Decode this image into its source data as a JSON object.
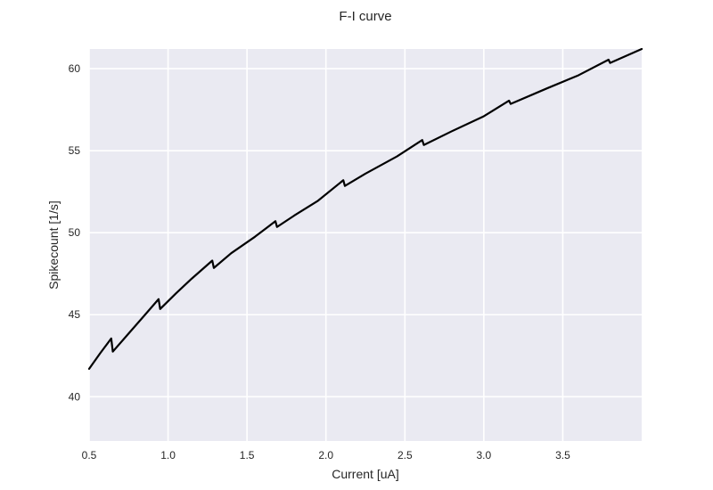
{
  "chart_data": {
    "type": "line",
    "title": "F-I curve",
    "xlabel": "Current [uA]",
    "ylabel": "Spikecount [1/s]",
    "xlim": [
      0.5,
      4.0
    ],
    "ylim": [
      37.3,
      61.2
    ],
    "xticks": [
      "0.5",
      "1.0",
      "1.5",
      "2.0",
      "2.5",
      "3.0",
      "3.5"
    ],
    "yticks": [
      "40",
      "45",
      "50",
      "55",
      "60"
    ],
    "grid": true,
    "colors": {
      "plot_background": "#EAEAF2",
      "grid": "#FFFFFF",
      "line": "#000000"
    },
    "series": [
      {
        "x": [
          0.5,
          0.57,
          0.64,
          0.65,
          0.75,
          0.85,
          0.94,
          0.95,
          1.05,
          1.15,
          1.28,
          1.29,
          1.4,
          1.55,
          1.68,
          1.69,
          1.8,
          1.95,
          2.11,
          2.12,
          2.25,
          2.45,
          2.61,
          2.62,
          2.8,
          3.0,
          3.16,
          3.17,
          3.4,
          3.6,
          3.79,
          3.8,
          4.0
        ],
        "y": [
          41.7,
          42.65,
          43.55,
          42.75,
          43.85,
          44.95,
          45.95,
          45.35,
          46.3,
          47.2,
          48.3,
          47.85,
          48.75,
          49.75,
          50.7,
          50.35,
          51.05,
          51.95,
          53.2,
          52.85,
          53.6,
          54.65,
          55.65,
          55.35,
          56.2,
          57.1,
          58.05,
          57.85,
          58.8,
          59.6,
          60.55,
          60.35,
          61.2
        ]
      }
    ]
  }
}
